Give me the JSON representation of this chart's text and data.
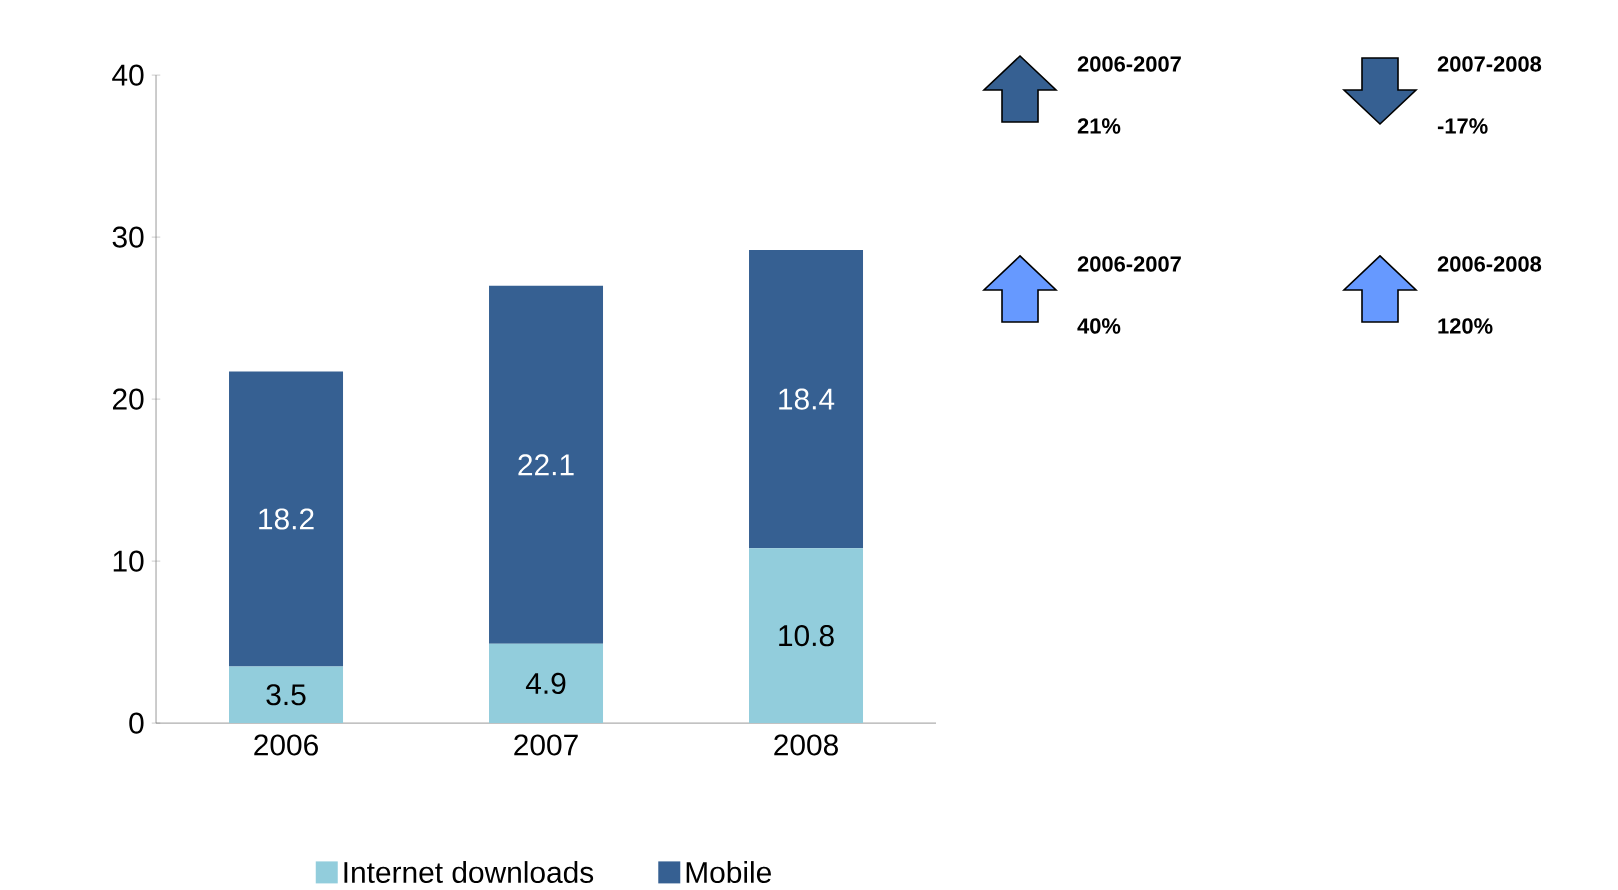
{
  "chart_data": {
    "type": "bar",
    "stacked": true,
    "categories": [
      "2006",
      "2007",
      "2008"
    ],
    "series": [
      {
        "name": "Internet downloads",
        "color": "#92cddc",
        "values": [
          3.5,
          4.9,
          10.8
        ]
      },
      {
        "name": "Mobile",
        "color": "#366092",
        "values": [
          18.2,
          22.1,
          18.4
        ]
      }
    ],
    "ylim": [
      0,
      40
    ],
    "yticks": [
      0,
      10,
      20,
      30,
      40
    ],
    "data_labels": true,
    "legend": "bottom",
    "annotations": [
      "2006-2007",
      "21%",
      "2007-2008",
      "-17%",
      "2006-2007",
      "40%",
      "2006-2008",
      "120%"
    ]
  }
}
